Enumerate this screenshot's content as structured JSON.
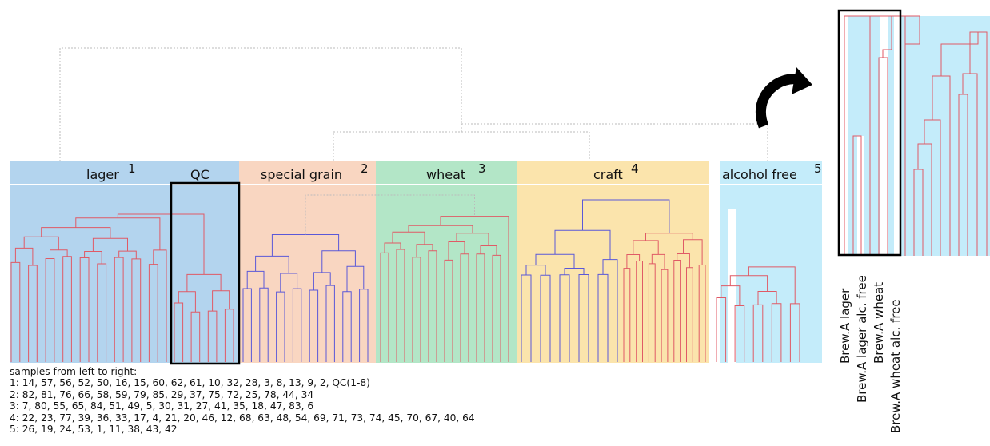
{
  "groups": [
    {
      "key": "lager",
      "label": "lager",
      "number": "1",
      "color": "#b3d4ee"
    },
    {
      "key": "qc",
      "label": "QC",
      "number": "",
      "color": "#b3d4ee"
    },
    {
      "key": "special-grain",
      "label": "special grain",
      "number": "2",
      "color": "#f9d6c1"
    },
    {
      "key": "wheat",
      "label": "wheat",
      "number": "3",
      "color": "#b3e6c7"
    },
    {
      "key": "craft",
      "label": "craft",
      "number": "4",
      "color": "#fbe4ac"
    },
    {
      "key": "alcohol-free",
      "label": "alcohol free",
      "number": "5",
      "color": "#c4ecfa"
    }
  ],
  "colors": {
    "branch_red": "#e05a66",
    "branch_blue": "#5a58d8",
    "branch_dotted": "#bbbbbb",
    "highlight_box": "#000000",
    "arrow": "#000000"
  },
  "icons": {
    "rotate": "curved-arrow-icon"
  },
  "samples_legend": {
    "title": "samples from left to right:",
    "lines": [
      "1: 14, 57, 56, 52, 50, 16, 15, 60, 62, 61, 10, 32, 28, 3, 8, 13, 9, 2, QC(1-8)",
      "2: 82, 81, 76, 66, 58, 59, 79, 85, 29, 37, 75, 72, 25, 78, 44, 34",
      "3: 7, 80, 55, 65, 84, 51, 49, 5, 30, 31, 27, 41, 35, 18, 47, 83, 6",
      "4: 22, 23, 77, 39, 36, 33, 17, 4, 21, 20, 46, 12, 68, 63, 48, 54, 69, 71, 73, 74, 45, 70, 67, 40, 64",
      "5: 26, 19, 24, 53, 1, 11, 38, 43, 42"
    ]
  },
  "zoom_labels": [
    "Brew.A lager",
    "Brew.A lager alc. free",
    "Brew.A wheat",
    "Brew.A wheat alc. free"
  ]
}
